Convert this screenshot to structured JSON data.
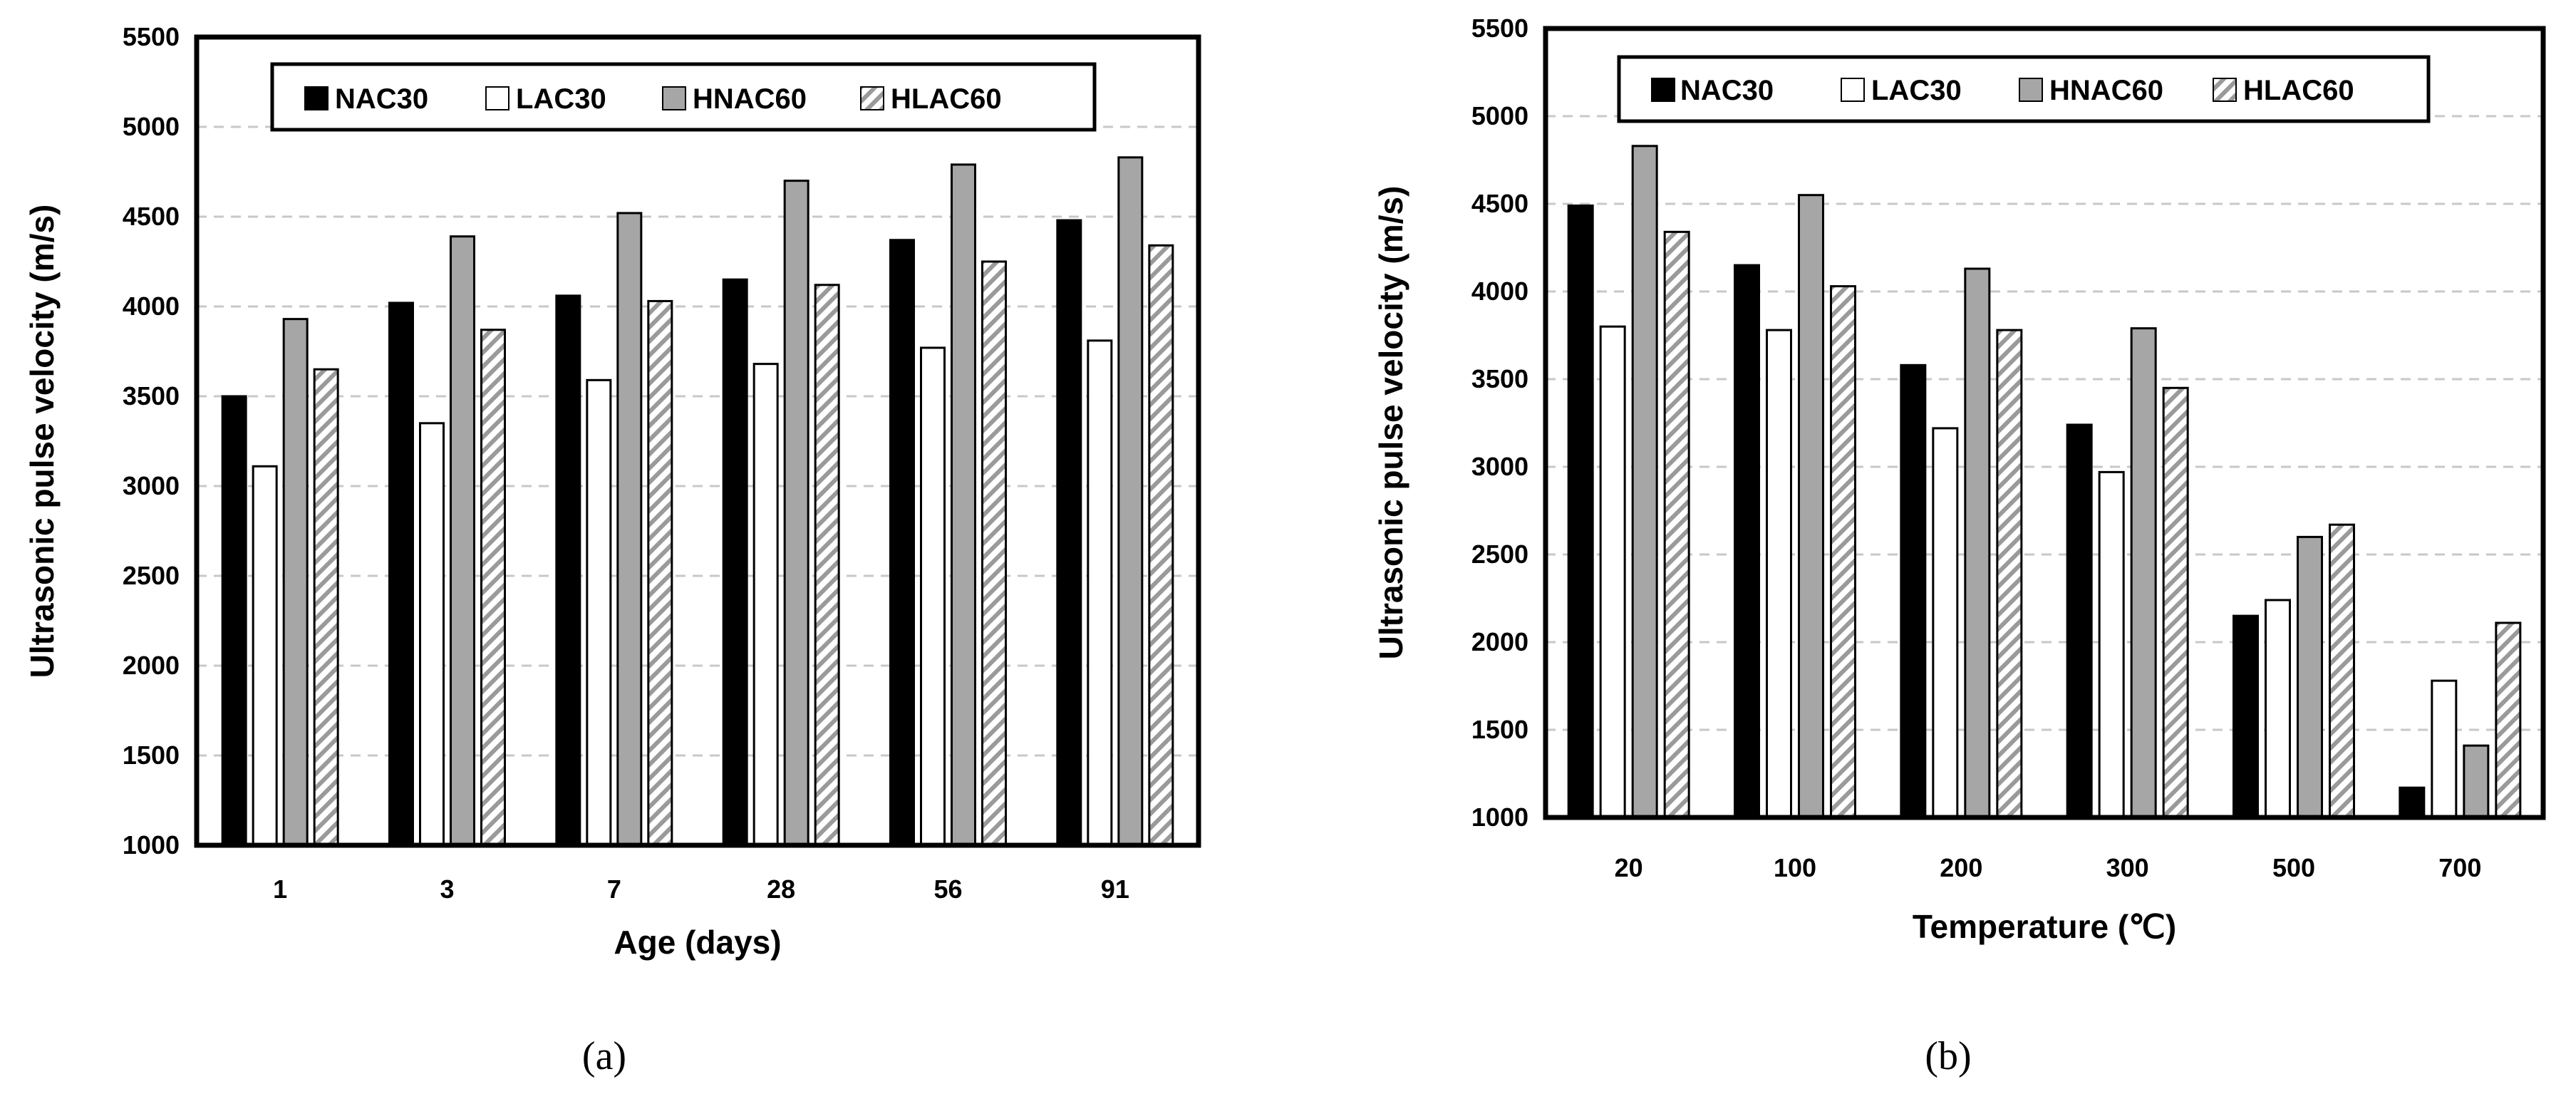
{
  "colors": {
    "NAC30": "#000000",
    "LAC30": "#ffffff",
    "HNAC60": "#a6a6a6",
    "HLAC60_stripe": "#9a9a9a",
    "grid": "#c8c8c8"
  },
  "chart_data": [
    {
      "type": "bar",
      "id": "a",
      "caption": "(a)",
      "xlabel": "Age (days)",
      "ylabel": "Ultrasonic pulse velocity (m/s)",
      "ylim": [
        1000,
        5500
      ],
      "yticks": [
        "1000",
        "1500",
        "2000",
        "2500",
        "3000",
        "3500",
        "4000",
        "4500",
        "5000",
        "5500"
      ],
      "categories": [
        "1",
        "3",
        "7",
        "28",
        "56",
        "91"
      ],
      "series": [
        {
          "name": "NAC30",
          "values": [
            3500,
            4020,
            4060,
            4150,
            4370,
            4480
          ]
        },
        {
          "name": "LAC30",
          "values": [
            3110,
            3350,
            3590,
            3680,
            3770,
            3810
          ]
        },
        {
          "name": "HNAC60",
          "values": [
            3930,
            4390,
            4520,
            4700,
            4790,
            4830
          ]
        },
        {
          "name": "HLAC60",
          "values": [
            3650,
            3870,
            4030,
            4120,
            4250,
            4340
          ]
        }
      ],
      "legend": [
        "NAC30",
        "LAC30",
        "HNAC60",
        "HLAC60"
      ],
      "grid": true
    },
    {
      "type": "bar",
      "id": "b",
      "caption": "(b)",
      "xlabel": "Temperature (℃)",
      "ylabel": "Ultrasonic pulse velocity (m/s)",
      "ylim": [
        1000,
        5500
      ],
      "yticks": [
        "1000",
        "1500",
        "2000",
        "2500",
        "3000",
        "3500",
        "4000",
        "4500",
        "5000",
        "5500"
      ],
      "categories": [
        "20",
        "100",
        "200",
        "300",
        "500",
        "700"
      ],
      "series": [
        {
          "name": "NAC30",
          "values": [
            4490,
            4150,
            3580,
            3240,
            2150,
            1170
          ]
        },
        {
          "name": "LAC30",
          "values": [
            3800,
            3780,
            3220,
            2970,
            2240,
            1780
          ]
        },
        {
          "name": "HNAC60",
          "values": [
            4830,
            4550,
            4130,
            3790,
            2600,
            1410
          ]
        },
        {
          "name": "HLAC60",
          "values": [
            4340,
            4030,
            3780,
            3450,
            2670,
            2110
          ]
        }
      ],
      "legend": [
        "NAC30",
        "LAC30",
        "HNAC60",
        "HLAC60"
      ],
      "grid": true
    }
  ]
}
